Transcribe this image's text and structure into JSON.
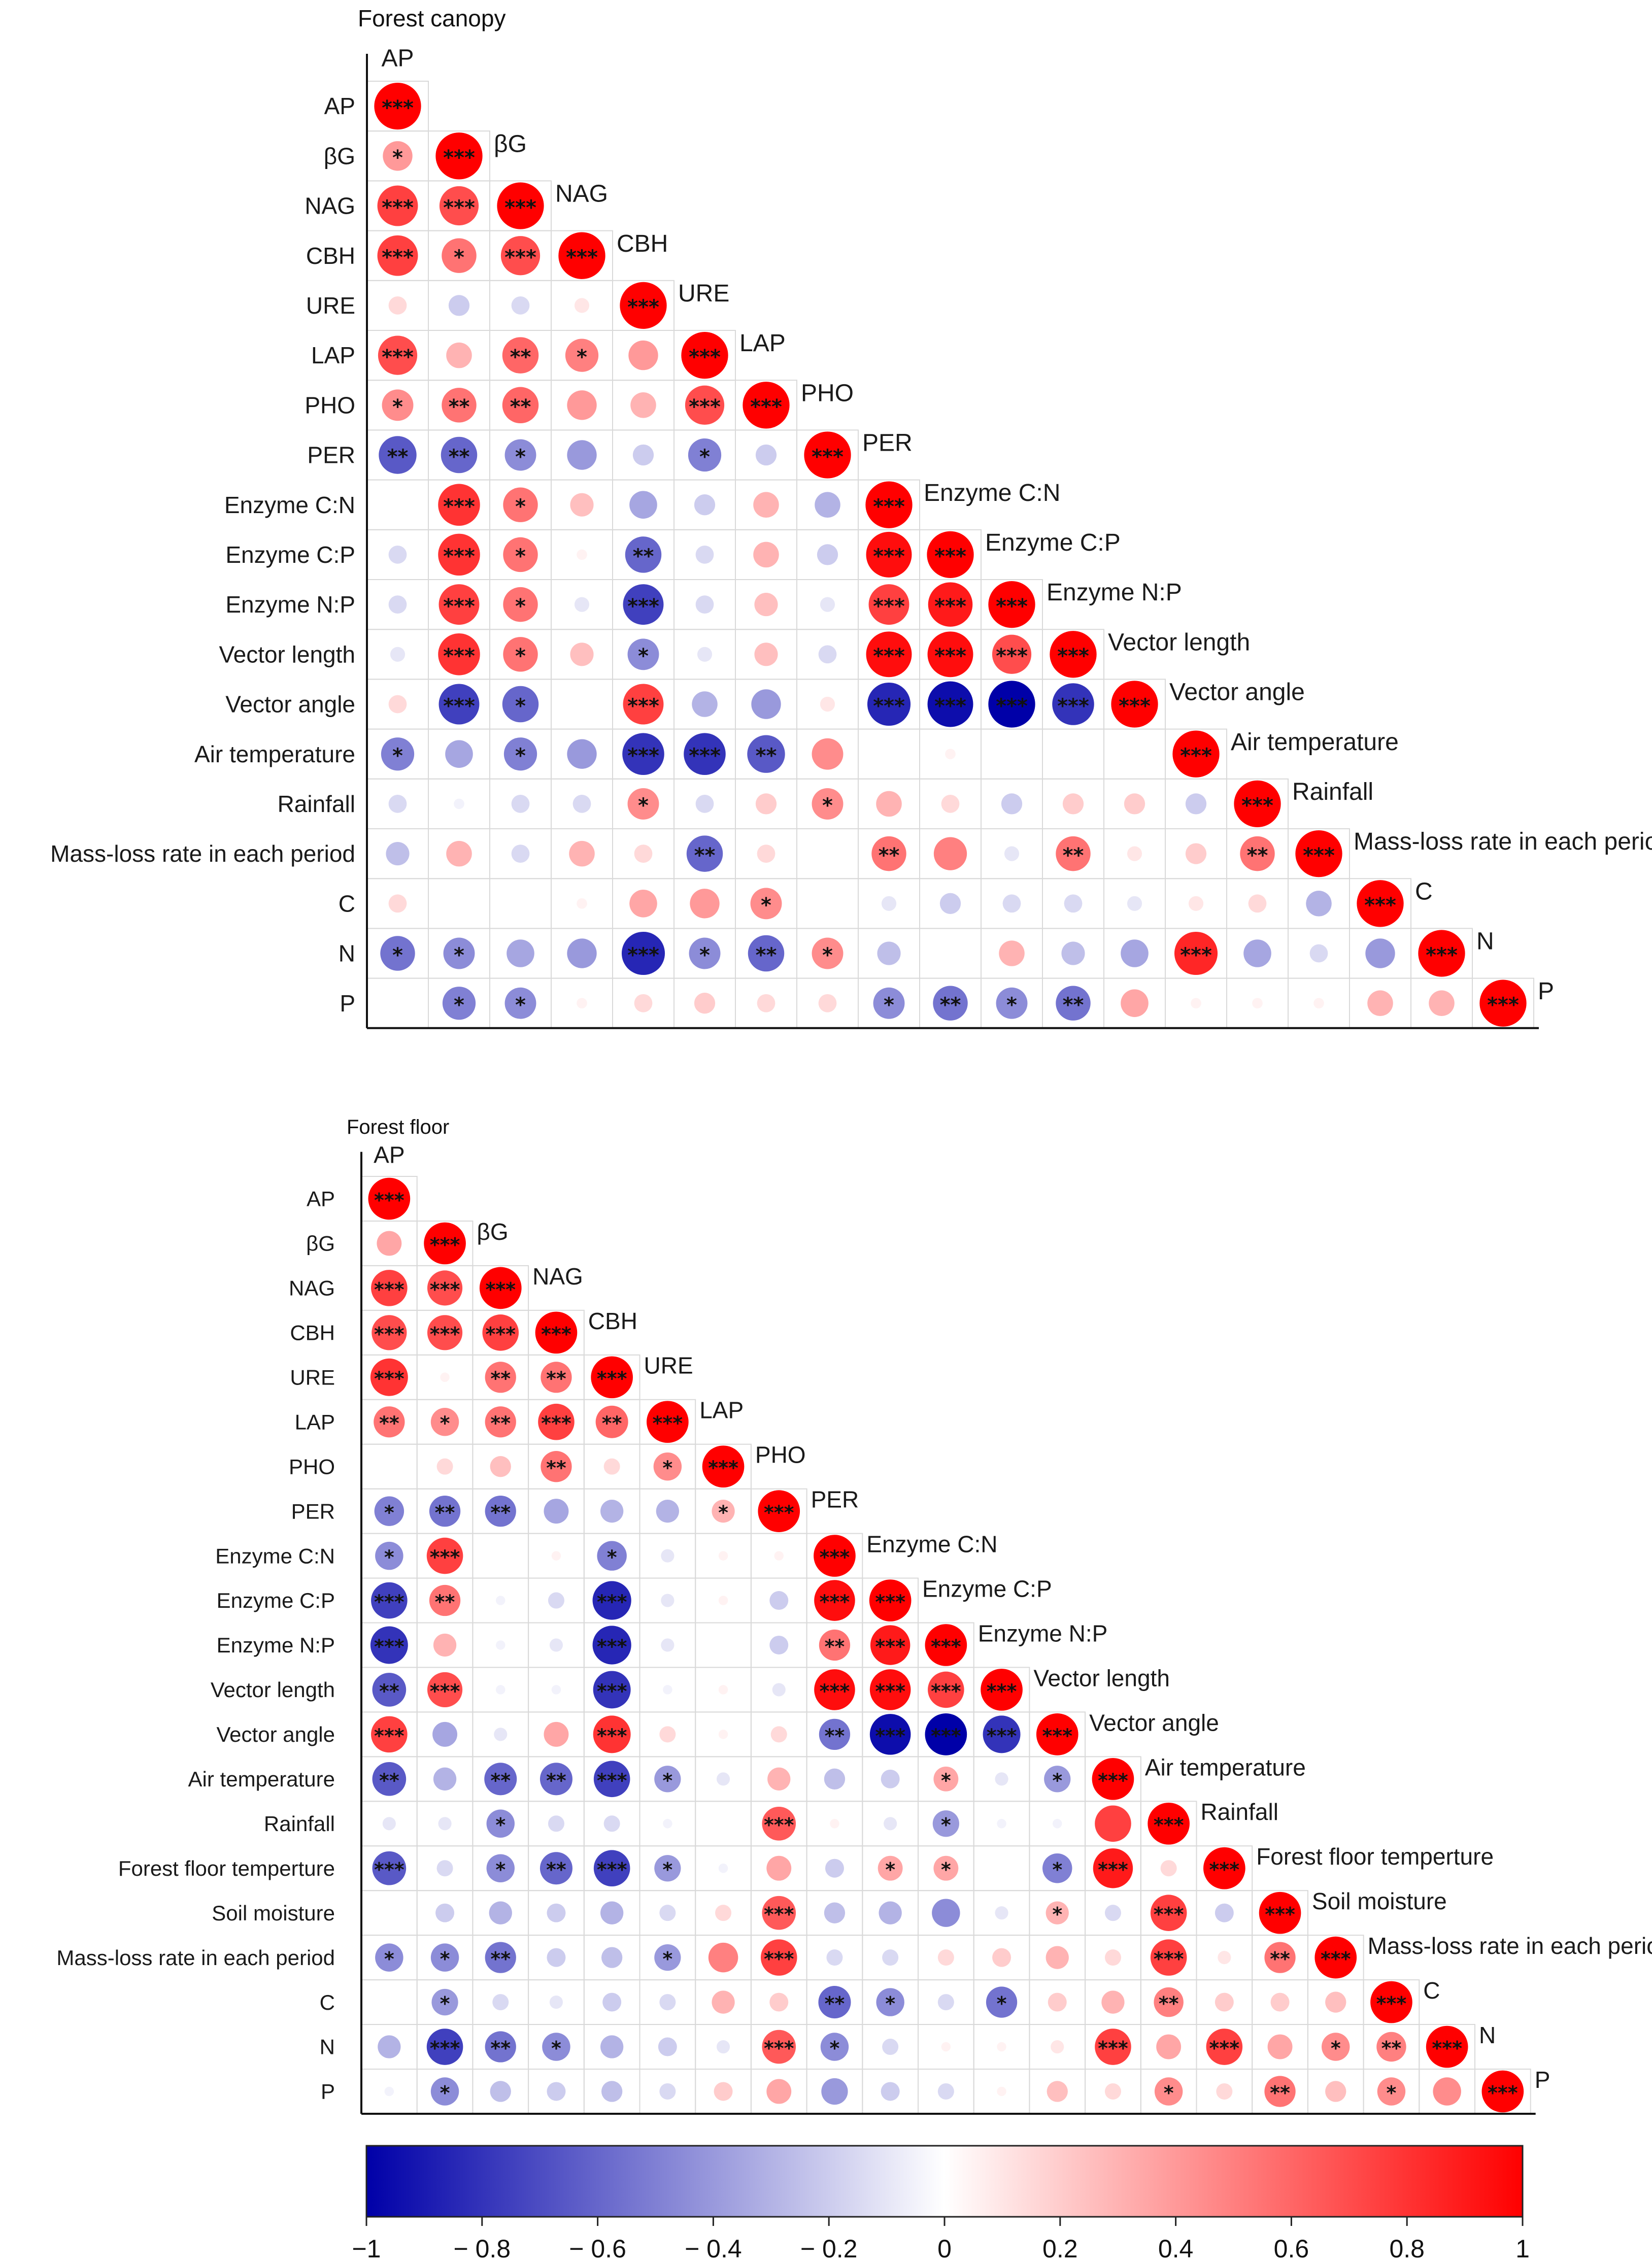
{
  "chart_data": [
    {
      "type": "heatmap",
      "title": "Forest canopy",
      "labels": [
        "AP",
        "βG",
        "NAG",
        "CBH",
        "URE",
        "LAP",
        "PHO",
        "PER",
        "Enzyme C:N",
        "Enzyme C:P",
        "Enzyme N:P",
        "Vector length",
        "Vector angle",
        "Air temperature",
        "Rainfall",
        "Mass-loss rate in each period",
        "C",
        "N",
        "P"
      ],
      "matrix": [
        [
          1.0
        ],
        [
          0.4,
          1.0
        ],
        [
          0.75,
          0.7,
          1.0
        ],
        [
          0.75,
          0.55,
          0.7,
          1.0
        ],
        [
          0.15,
          -0.2,
          -0.15,
          0.1,
          1.0
        ],
        [
          0.7,
          0.3,
          0.6,
          0.5,
          0.4,
          1.0
        ],
        [
          0.45,
          0.55,
          0.6,
          0.4,
          0.3,
          0.7,
          1.0
        ],
        [
          -0.65,
          -0.6,
          -0.45,
          -0.4,
          -0.2,
          -0.5,
          -0.2,
          1.0
        ],
        [
          0.0,
          0.8,
          0.55,
          0.25,
          -0.35,
          -0.2,
          0.3,
          -0.3,
          1.0
        ],
        [
          -0.15,
          0.8,
          0.55,
          0.05,
          -0.6,
          -0.15,
          0.3,
          -0.2,
          0.95,
          1.0
        ],
        [
          -0.15,
          0.75,
          0.55,
          -0.1,
          -0.75,
          -0.15,
          0.25,
          -0.1,
          0.75,
          0.9,
          1.0
        ],
        [
          -0.1,
          0.8,
          0.55,
          0.25,
          -0.45,
          -0.1,
          0.25,
          -0.15,
          0.95,
          0.95,
          0.7,
          1.0
        ],
        [
          0.15,
          -0.75,
          -0.6,
          0.0,
          0.75,
          -0.3,
          -0.4,
          0.1,
          -0.85,
          -0.95,
          -1.0,
          -0.8,
          1.0
        ],
        [
          -0.5,
          -0.35,
          -0.5,
          -0.4,
          -0.8,
          -0.8,
          -0.65,
          0.45,
          0.0,
          0.05,
          0.0,
          0.0,
          0.0,
          1.0
        ],
        [
          -0.15,
          -0.05,
          -0.15,
          -0.15,
          0.45,
          -0.15,
          0.2,
          0.45,
          0.3,
          0.15,
          -0.2,
          0.2,
          0.2,
          -0.2,
          1.0
        ],
        [
          -0.25,
          0.3,
          -0.15,
          0.3,
          0.15,
          -0.6,
          0.15,
          0.0,
          0.55,
          0.5,
          -0.1,
          0.55,
          0.1,
          0.2,
          0.55,
          1.0
        ],
        [
          0.15,
          0.0,
          0.0,
          0.05,
          0.35,
          0.4,
          0.45,
          0.0,
          -0.1,
          -0.2,
          -0.15,
          -0.15,
          -0.1,
          0.1,
          0.15,
          -0.3,
          1.0
        ],
        [
          -0.55,
          -0.45,
          -0.35,
          -0.4,
          -0.85,
          -0.45,
          -0.6,
          0.45,
          -0.25,
          0.0,
          0.3,
          -0.25,
          -0.35,
          0.85,
          -0.35,
          -0.15,
          -0.4,
          1.0
        ],
        [
          0.0,
          -0.5,
          -0.45,
          0.05,
          0.15,
          0.2,
          0.15,
          0.15,
          -0.45,
          -0.55,
          -0.45,
          -0.55,
          0.35,
          0.05,
          0.05,
          0.05,
          0.3,
          0.3,
          1.0
        ]
      ],
      "stars": [
        [
          "***"
        ],
        [
          "*",
          "***"
        ],
        [
          "***",
          "***",
          "***"
        ],
        [
          "***",
          "*",
          "***",
          "***"
        ],
        [
          "",
          "",
          "",
          "",
          "***"
        ],
        [
          "***",
          "",
          "**",
          "*",
          "",
          "***"
        ],
        [
          "*",
          "**",
          "**",
          "",
          "",
          "***",
          "***"
        ],
        [
          "**",
          "**",
          "*",
          "",
          "",
          "*",
          "",
          "***"
        ],
        [
          "",
          "***",
          "*",
          "",
          "",
          "",
          "",
          "",
          "***"
        ],
        [
          "",
          "***",
          "*",
          "",
          "**",
          "",
          "",
          "",
          "***",
          "***"
        ],
        [
          "",
          "***",
          "*",
          "",
          "***",
          "",
          "",
          "",
          "***",
          "***",
          "***"
        ],
        [
          "",
          "***",
          "*",
          "",
          "*",
          "",
          "",
          "",
          "***",
          "***",
          "***",
          "***"
        ],
        [
          "",
          "***",
          "*",
          "",
          "***",
          "",
          "",
          "",
          "***",
          "***",
          "***",
          "***",
          "***"
        ],
        [
          "*",
          "",
          "*",
          "",
          "***",
          "***",
          "**",
          "",
          "",
          "",
          "",
          "",
          "",
          "***"
        ],
        [
          "",
          "",
          "",
          "",
          "*",
          "",
          "",
          "*",
          "",
          "",
          "",
          "",
          "",
          "",
          "***"
        ],
        [
          "",
          "",
          "",
          "",
          "",
          "**",
          "",
          "",
          "**",
          "",
          "",
          "**",
          "",
          "",
          "**",
          "***"
        ],
        [
          "",
          "",
          "",
          "",
          "",
          "",
          "*",
          "",
          "",
          "",
          "",
          "",
          "",
          "",
          "",
          "",
          "***"
        ],
        [
          "*",
          "*",
          "",
          "",
          "***",
          "*",
          "**",
          "*",
          "",
          "",
          "",
          "",
          "",
          "***",
          "",
          "",
          "",
          "***"
        ],
        [
          "",
          "*",
          "*",
          "",
          "",
          "",
          "",
          "",
          "*",
          "**",
          "*",
          "**",
          "",
          "",
          "",
          "",
          "",
          "",
          "***"
        ]
      ]
    },
    {
      "type": "heatmap",
      "title": "Forest floor",
      "labels": [
        "AP",
        "βG",
        "NAG",
        "CBH",
        "URE",
        "LAP",
        "PHO",
        "PER",
        "Enzyme C:N",
        "Enzyme C:P",
        "Enzyme N:P",
        "Vector length",
        "Vector angle",
        "Air temperature",
        "Rainfall",
        "Forest floor temperture",
        "Soil moisture",
        "Mass-loss rate in each period",
        "C",
        "N",
        "P"
      ],
      "matrix": [
        [
          1.0
        ],
        [
          0.35,
          1.0
        ],
        [
          0.75,
          0.7,
          1.0
        ],
        [
          0.7,
          0.7,
          0.75,
          1.0
        ],
        [
          0.8,
          0.05,
          0.55,
          0.55,
          1.0
        ],
        [
          0.55,
          0.45,
          0.55,
          0.75,
          0.6,
          1.0
        ],
        [
          0.0,
          0.15,
          0.25,
          0.55,
          0.15,
          0.45,
          1.0
        ],
        [
          -0.5,
          -0.55,
          -0.55,
          -0.35,
          -0.3,
          -0.3,
          0.3,
          1.0
        ],
        [
          -0.45,
          0.75,
          0.0,
          0.05,
          -0.5,
          -0.1,
          0.05,
          0.05,
          1.0
        ],
        [
          -0.75,
          0.55,
          -0.05,
          -0.15,
          -0.85,
          -0.1,
          0.05,
          -0.2,
          0.95,
          1.0
        ],
        [
          -0.8,
          0.3,
          -0.05,
          -0.1,
          -0.85,
          -0.1,
          0.0,
          -0.2,
          0.55,
          0.9,
          1.0
        ],
        [
          -0.65,
          0.7,
          -0.05,
          -0.05,
          -0.8,
          -0.05,
          0.05,
          -0.1,
          0.95,
          0.95,
          0.75,
          1.0
        ],
        [
          0.75,
          -0.35,
          -0.1,
          0.35,
          0.8,
          0.15,
          0.05,
          0.15,
          -0.55,
          -0.95,
          -1.0,
          -0.8,
          1.0
        ],
        [
          -0.65,
          -0.3,
          -0.6,
          -0.6,
          -0.75,
          -0.4,
          -0.1,
          0.3,
          -0.25,
          -0.2,
          0.35,
          -0.1,
          -0.4,
          1.0
        ],
        [
          -0.1,
          -0.1,
          -0.45,
          -0.15,
          -0.15,
          -0.05,
          0.0,
          0.65,
          0.05,
          -0.1,
          -0.4,
          -0.05,
          -0.05,
          0.75,
          1.0
        ],
        [
          -0.65,
          -0.15,
          -0.45,
          -0.6,
          -0.75,
          -0.4,
          -0.05,
          0.35,
          -0.2,
          0.35,
          0.35,
          0.0,
          -0.5,
          0.9,
          0.15,
          1.0
        ],
        [
          0.0,
          -0.2,
          -0.3,
          -0.2,
          -0.3,
          -0.15,
          0.15,
          0.65,
          -0.25,
          -0.3,
          -0.45,
          -0.1,
          0.3,
          -0.15,
          0.75,
          -0.2,
          1.0
        ],
        [
          -0.45,
          -0.45,
          -0.55,
          -0.2,
          -0.25,
          -0.4,
          0.5,
          0.75,
          -0.15,
          -0.15,
          0.15,
          0.2,
          0.3,
          0.15,
          0.75,
          0.1,
          0.55,
          1.0
        ],
        [
          0.0,
          -0.4,
          -0.15,
          -0.1,
          -0.2,
          -0.15,
          0.3,
          0.2,
          -0.6,
          -0.45,
          -0.15,
          -0.55,
          0.2,
          0.3,
          0.5,
          0.2,
          0.2,
          0.25,
          1.0
        ],
        [
          -0.3,
          -0.75,
          -0.55,
          -0.45,
          -0.3,
          -0.2,
          -0.1,
          0.65,
          -0.45,
          -0.15,
          0.05,
          0.05,
          0.1,
          0.75,
          0.35,
          0.75,
          0.35,
          0.45,
          0.5,
          1.0
        ],
        [
          -0.05,
          -0.45,
          -0.25,
          -0.2,
          -0.25,
          -0.15,
          0.2,
          0.35,
          -0.4,
          -0.2,
          -0.15,
          0.05,
          0.25,
          0.15,
          0.45,
          0.15,
          0.55,
          0.25,
          0.45,
          0.45,
          1.0
        ]
      ],
      "stars": [
        [
          "***"
        ],
        [
          "",
          "***"
        ],
        [
          "***",
          "***",
          "***"
        ],
        [
          "***",
          "***",
          "***",
          "***"
        ],
        [
          "***",
          "",
          "**",
          "**",
          "***"
        ],
        [
          "**",
          "*",
          "**",
          "***",
          "**",
          "***"
        ],
        [
          "",
          "",
          "",
          "**",
          "",
          "*",
          "***"
        ],
        [
          "*",
          "**",
          "**",
          "",
          "",
          "",
          "*",
          "***"
        ],
        [
          "*",
          "***",
          "",
          "",
          "*",
          "",
          "",
          "",
          "***"
        ],
        [
          "***",
          "**",
          "",
          "",
          "***",
          "",
          "",
          "",
          "***",
          "***"
        ],
        [
          "***",
          "",
          "",
          "",
          "***",
          "",
          "",
          "",
          "**",
          "***",
          "***"
        ],
        [
          "**",
          "***",
          "",
          "",
          "***",
          "",
          "",
          "",
          "***",
          "***",
          "***",
          "***"
        ],
        [
          "***",
          "",
          "",
          "",
          "***",
          "",
          "",
          "",
          "**",
          "***",
          "***",
          "***",
          "***"
        ],
        [
          "**",
          "",
          "**",
          "**",
          "***",
          "*",
          "",
          "",
          "",
          "",
          "*",
          "",
          "*",
          "***"
        ],
        [
          "",
          "",
          "*",
          "",
          "",
          "",
          "",
          "***",
          "",
          "",
          "*",
          "",
          "",
          "",
          "***"
        ],
        [
          "***",
          "",
          "*",
          "**",
          "***",
          "*",
          "",
          "",
          "",
          "*",
          "*",
          "",
          "*",
          "***",
          "",
          "***"
        ],
        [
          "",
          "",
          "",
          "",
          "",
          "",
          "",
          "***",
          "",
          "",
          "",
          "",
          "*",
          "",
          "***",
          "",
          "***"
        ],
        [
          "*",
          "*",
          "**",
          "",
          "",
          "*",
          "",
          "***",
          "",
          "",
          "",
          "",
          "",
          "",
          "***",
          "",
          "**",
          "***"
        ],
        [
          "",
          "*",
          "",
          "",
          "",
          "",
          "",
          "",
          "**",
          "*",
          "",
          "*",
          "",
          "",
          "**",
          "",
          "",
          "",
          "***"
        ],
        [
          "",
          "***",
          "**",
          "*",
          "",
          "",
          "",
          "***",
          "*",
          "",
          "",
          "",
          "",
          "***",
          "",
          "***",
          "",
          "*",
          "**",
          "***"
        ],
        [
          "",
          "*",
          "",
          "",
          "",
          "",
          "",
          "",
          "",
          "",
          "",
          "",
          "",
          "",
          "*",
          "",
          "**",
          "",
          "*",
          "",
          "***"
        ]
      ]
    }
  ],
  "colorbar": {
    "ticks": [
      "−1",
      "− 0.8",
      "− 0.6",
      "− 0.4",
      "− 0.2",
      "0",
      "0.2",
      "0.4",
      "0.6",
      "0.8",
      "1"
    ],
    "range": [
      -1,
      1
    ],
    "colors": {
      "negative": "#0000a8",
      "zero": "#ffffff",
      "positive": "#ff0000"
    }
  }
}
